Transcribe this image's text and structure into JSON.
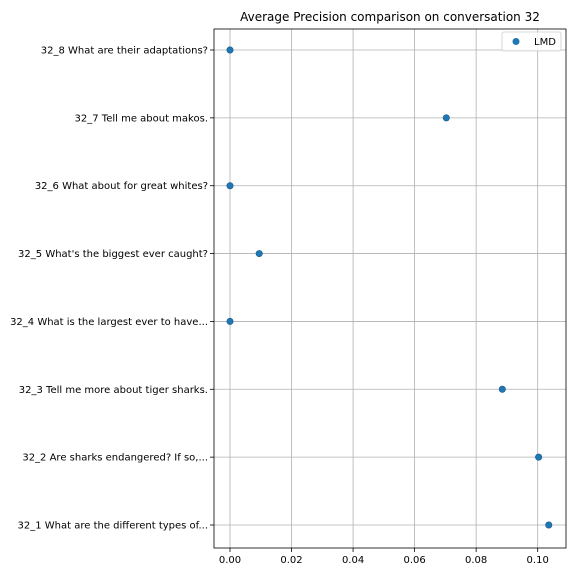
{
  "chart_data": {
    "type": "scatter",
    "title": "Average Precision comparison on conversation 32",
    "xlabel": "",
    "ylabel": "",
    "xlim": [
      -0.0052,
      0.1092
    ],
    "x_ticks": [
      "0.00",
      "0.02",
      "0.04",
      "0.06",
      "0.08",
      "0.10"
    ],
    "x_tick_values": [
      0.0,
      0.02,
      0.04,
      0.06,
      0.08,
      0.1
    ],
    "grid": true,
    "legend_position": "top-right",
    "categories": [
      "32_1 What are the different types of...",
      "32_2 Are sharks endangered? If so,...",
      "32_3 Tell me more about tiger sharks.",
      "32_4 What is the largest ever to have...",
      "32_5 What's the biggest ever caught?",
      "32_6 What about for great whites?",
      "32_7 Tell me about makos.",
      "32_8 What are their adaptations?"
    ],
    "series": [
      {
        "name": "LMD",
        "color": "#1f77b4",
        "values": [
          0.1036,
          0.1003,
          0.0885,
          0.0,
          0.0095,
          0.0,
          0.0703,
          0.0
        ]
      }
    ]
  }
}
